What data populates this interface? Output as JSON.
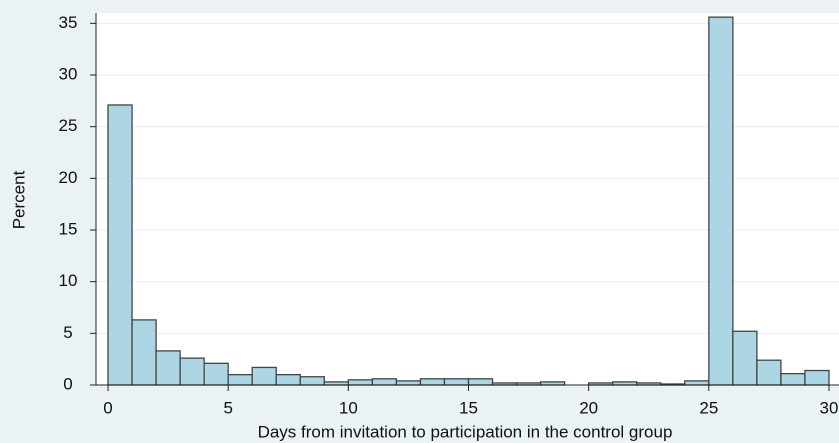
{
  "chart_data": {
    "type": "histogram",
    "xlabel": "Days from invitation to participation in the control group",
    "ylabel": "Percent",
    "bins": [
      0,
      1,
      2,
      3,
      4,
      5,
      6,
      7,
      8,
      9,
      10,
      11,
      12,
      13,
      14,
      15,
      16,
      17,
      18,
      19,
      20,
      21,
      22,
      23,
      24,
      25,
      26,
      27,
      28,
      29,
      30
    ],
    "values": [
      27.1,
      6.3,
      3.3,
      2.6,
      2.1,
      1.0,
      1.7,
      1.0,
      0.8,
      0.3,
      0.5,
      0.6,
      0.4,
      0.6,
      0.6,
      0.6,
      0.2,
      0.2,
      0.3,
      0,
      0.2,
      0.3,
      0.2,
      0.1,
      0.4,
      35.6,
      5.2,
      2.4,
      1.1,
      1.4
    ],
    "color": "#acd6e3",
    "xlim": [
      -0.5,
      30.5
    ],
    "ylim": [
      0,
      36
    ],
    "xticks": [
      0,
      5,
      10,
      15,
      20,
      25,
      30
    ],
    "yticks": [
      0,
      5,
      10,
      15,
      20,
      25,
      30,
      35
    ],
    "grid": true
  }
}
